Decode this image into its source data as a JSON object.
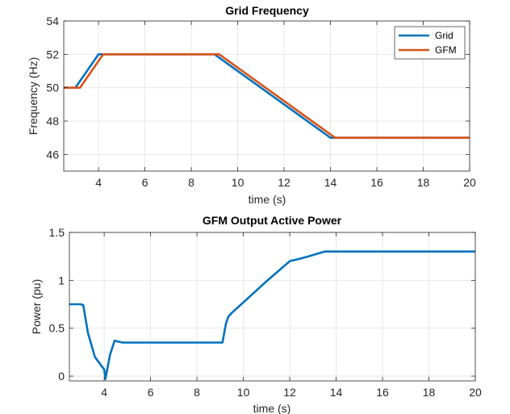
{
  "chart_data": [
    {
      "type": "line",
      "title": "Grid Frequency",
      "xlabel": "time (s)",
      "ylabel": "Frequency (Hz)",
      "xlim": [
        2.5,
        20
      ],
      "ylim": [
        45,
        54
      ],
      "xticks": [
        4,
        6,
        8,
        10,
        12,
        14,
        16,
        18,
        20
      ],
      "yticks": [
        46,
        48,
        50,
        52,
        54
      ],
      "grid": true,
      "legend_position": "top-right",
      "series": [
        {
          "name": "Grid",
          "color": "#0072BD",
          "x": [
            2.5,
            3.0,
            4.0,
            9.0,
            14.0,
            20.0
          ],
          "y": [
            50,
            50,
            52,
            52,
            47,
            47
          ]
        },
        {
          "name": "GFM",
          "color": "#D95319",
          "x": [
            2.5,
            3.2,
            4.2,
            9.2,
            14.2,
            20.0
          ],
          "y": [
            50,
            50,
            52,
            52,
            47,
            47
          ]
        }
      ]
    },
    {
      "type": "line",
      "title": "GFM Output Active Power",
      "xlabel": "time (s)",
      "ylabel": "Power (pu)",
      "xlim": [
        2.5,
        20
      ],
      "ylim": [
        -0.05,
        1.5
      ],
      "xticks": [
        4,
        6,
        8,
        10,
        12,
        14,
        16,
        18,
        20
      ],
      "yticks": [
        0,
        0.5,
        1,
        1.5
      ],
      "grid": true,
      "series": [
        {
          "name": "GFM",
          "color": "#0072BD",
          "x": [
            2.5,
            3.0,
            3.1,
            3.3,
            3.6,
            4.0,
            4.05,
            4.25,
            4.45,
            4.6,
            4.8,
            6.0,
            8.0,
            9.1,
            9.25,
            9.35,
            9.5,
            10.0,
            11.0,
            12.0,
            12.5,
            12.8,
            13.5,
            16.0,
            20.0
          ],
          "y": [
            0.75,
            0.75,
            0.74,
            0.45,
            0.2,
            0.07,
            -0.03,
            0.22,
            0.37,
            0.36,
            0.35,
            0.35,
            0.35,
            0.35,
            0.55,
            0.62,
            0.66,
            0.77,
            0.99,
            1.2,
            1.23,
            1.25,
            1.3,
            1.3,
            1.3
          ]
        }
      ]
    }
  ]
}
